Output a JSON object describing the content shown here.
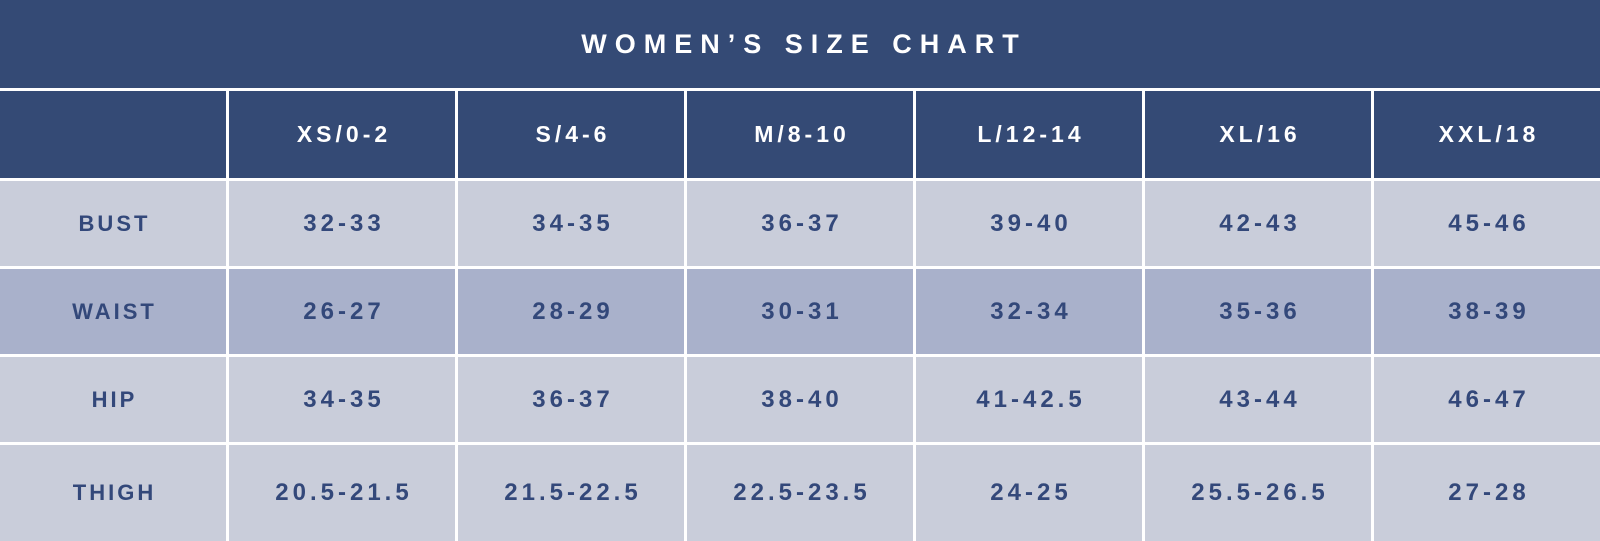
{
  "title": "WOMEN’S SIZE CHART",
  "colors": {
    "header_navy": "#344A75",
    "row_light": "#C9CDDA",
    "row_dark": "#A9B1CB",
    "body_text_navy": "#33487A",
    "header_text": "#FFFFFF",
    "separator": "#FFFFFF"
  },
  "chart_data": {
    "type": "table",
    "title": "WOMEN’S SIZE CHART",
    "columns": [
      "XS/0-2",
      "S/4-6",
      "M/8-10",
      "L/12-14",
      "XL/16",
      "XXL/18"
    ],
    "row_header_column": "",
    "rows": [
      {
        "label": "BUST",
        "shade": "light",
        "values": [
          "32-33",
          "34-35",
          "36-37",
          "39-40",
          "42-43",
          "45-46"
        ]
      },
      {
        "label": "WAIST",
        "shade": "dark",
        "values": [
          "26-27",
          "28-29",
          "30-31",
          "32-34",
          "35-36",
          "38-39"
        ]
      },
      {
        "label": "HIP",
        "shade": "light",
        "values": [
          "34-35",
          "36-37",
          "38-40",
          "41-42.5",
          "43-44",
          "46-47"
        ]
      },
      {
        "label": "THIGH",
        "shade": "light",
        "values": [
          "20.5-21.5",
          "21.5-22.5",
          "22.5-23.5",
          "24-25",
          "25.5-26.5",
          "27-28"
        ]
      }
    ],
    "layout": {
      "columns_equal_width": true,
      "grid": "white 3px separators between all cells and rows",
      "legend": "none"
    }
  }
}
